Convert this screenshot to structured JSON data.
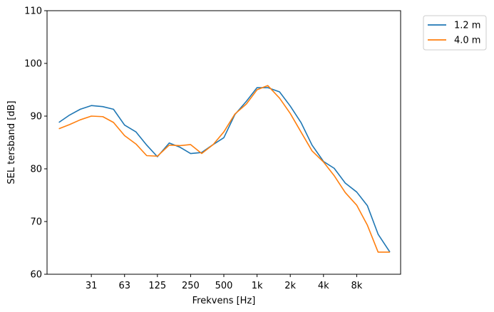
{
  "chart_data": {
    "type": "line",
    "xlabel": "Frekvens [Hz]",
    "ylabel": "SEL tersband [dB]",
    "xscale": "log2",
    "xlim": [
      12.5,
      20000
    ],
    "ylim": [
      60,
      110
    ],
    "yticks": [
      60,
      70,
      80,
      90,
      100,
      110
    ],
    "xticks": [
      {
        "value": 31.5,
        "label": "31"
      },
      {
        "value": 63,
        "label": "63"
      },
      {
        "value": 125,
        "label": "125"
      },
      {
        "value": 250,
        "label": "250"
      },
      {
        "value": 500,
        "label": "500"
      },
      {
        "value": 1000,
        "label": "1k"
      },
      {
        "value": 2000,
        "label": "2k"
      },
      {
        "value": 4000,
        "label": "4k"
      },
      {
        "value": 8000,
        "label": "8k"
      }
    ],
    "grid": false,
    "legend_position": "outside-top-right",
    "x": [
      16,
      20,
      25,
      31.5,
      40,
      50,
      63,
      80,
      100,
      125,
      160,
      200,
      250,
      315,
      400,
      500,
      630,
      800,
      1000,
      1250,
      1600,
      2000,
      2500,
      3150,
      4000,
      5000,
      6300,
      8000,
      10000,
      12500,
      16000
    ],
    "series": [
      {
        "name": "1.2 m",
        "color": "#1f77b4",
        "values": [
          88.8,
          90.2,
          91.3,
          92.0,
          91.8,
          91.3,
          88.3,
          87.0,
          84.5,
          82.3,
          84.9,
          84.1,
          82.9,
          83.1,
          84.6,
          85.9,
          90.3,
          92.8,
          95.4,
          95.4,
          94.6,
          91.9,
          88.8,
          84.5,
          81.4,
          80.1,
          77.3,
          75.6,
          73.0,
          67.6,
          64.2
        ],
        "values_note": ""
      },
      {
        "name": "4.0 m",
        "color": "#ff7f0e",
        "values": [
          87.6,
          88.4,
          89.3,
          90.0,
          89.9,
          88.8,
          86.3,
          84.7,
          82.5,
          82.4,
          84.5,
          84.4,
          84.6,
          82.9,
          84.6,
          87.0,
          90.4,
          92.3,
          95.0,
          95.8,
          93.4,
          90.5,
          87.0,
          83.4,
          81.3,
          78.7,
          75.5,
          73.1,
          69.3,
          64.2,
          64.2
        ]
      }
    ]
  }
}
